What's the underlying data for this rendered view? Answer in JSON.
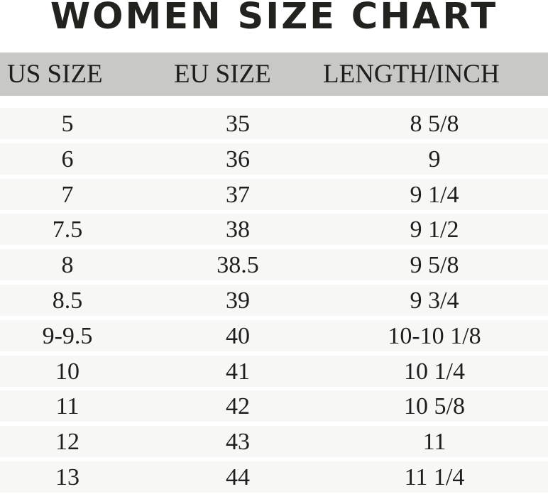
{
  "title": "WOMEN SIZE CHART",
  "columns": [
    "US SIZE",
    "EU SIZE",
    "LENGTH/INCH"
  ],
  "rows": [
    [
      "5",
      "35",
      "8 5/8"
    ],
    [
      "6",
      "36",
      "9"
    ],
    [
      "7",
      "37",
      "9 1/4"
    ],
    [
      "7.5",
      "38",
      "9 1/2"
    ],
    [
      "8",
      "38.5",
      "9 5/8"
    ],
    [
      "8.5",
      "39",
      "9 3/4"
    ],
    [
      "9-9.5",
      "40",
      "10-10 1/8"
    ],
    [
      "10",
      "41",
      "10 1/4"
    ],
    [
      "11",
      "42",
      "10 5/8"
    ],
    [
      "12",
      "43",
      "11"
    ],
    [
      "13",
      "44",
      "11 1/4"
    ]
  ],
  "colors": {
    "header_bg": "#c8c8c6",
    "row_bg": "#f7f7f5",
    "text": "#1e1e1e"
  }
}
